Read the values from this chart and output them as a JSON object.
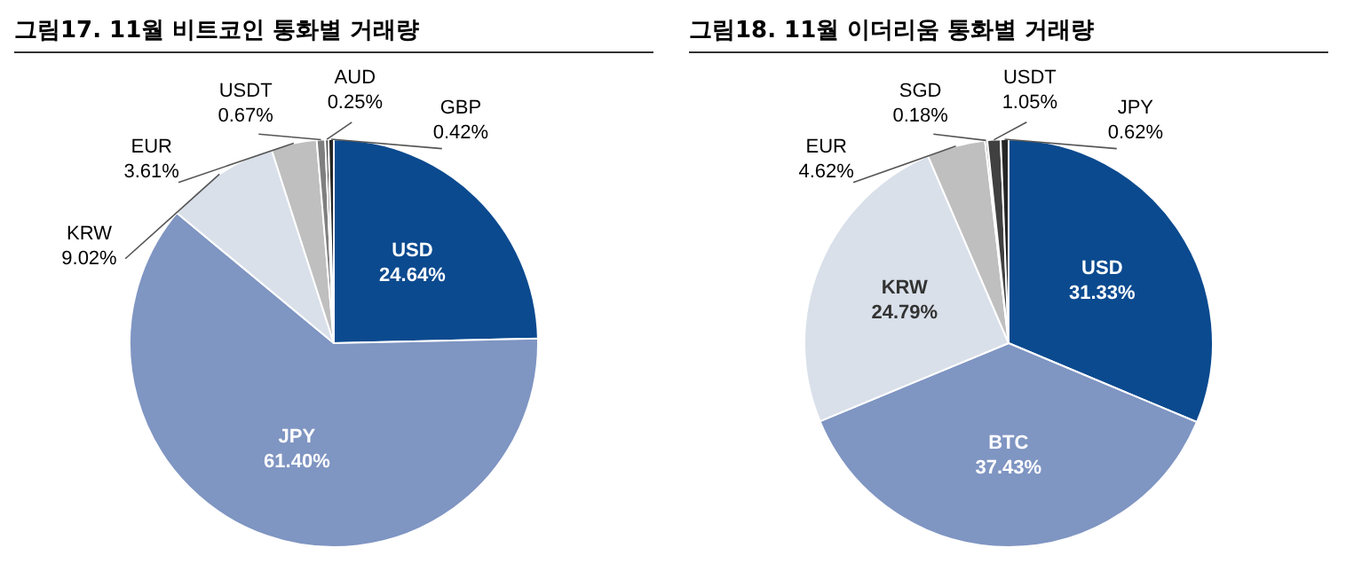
{
  "chart_data": [
    {
      "type": "pie",
      "title": "그림17. 11월 비트코인 통화별 거래량",
      "categories": [
        "USD",
        "JPY",
        "KRW",
        "EUR",
        "USDT",
        "AUD",
        "GBP"
      ],
      "values": [
        24.64,
        61.4,
        9.02,
        3.61,
        0.67,
        0.25,
        0.42
      ],
      "colors": [
        "#0b4a8f",
        "#7f95c2",
        "#d9e0ea",
        "#bfbfbf",
        "#7f7f7f",
        "#404040",
        "#262626"
      ],
      "value_labels": [
        "24.64%",
        "61.40%",
        "9.02%",
        "3.61%",
        "0.67%",
        "0.25%",
        "0.42%"
      ],
      "legend": false
    },
    {
      "type": "pie",
      "title": "그림18. 11월 이더리움 통화별 거래량",
      "categories": [
        "USD",
        "BTC",
        "KRW",
        "EUR",
        "SGD",
        "USDT",
        "JPY"
      ],
      "values": [
        31.33,
        37.43,
        24.79,
        4.62,
        0.18,
        1.05,
        0.62
      ],
      "colors": [
        "#0b4a8f",
        "#7f95c2",
        "#d9e0ea",
        "#bfbfbf",
        "#7f7f7f",
        "#404040",
        "#262626"
      ],
      "value_labels": [
        "31.33%",
        "37.43%",
        "24.79%",
        "4.62%",
        "0.18%",
        "1.05%",
        "0.62%"
      ],
      "legend": false
    }
  ]
}
